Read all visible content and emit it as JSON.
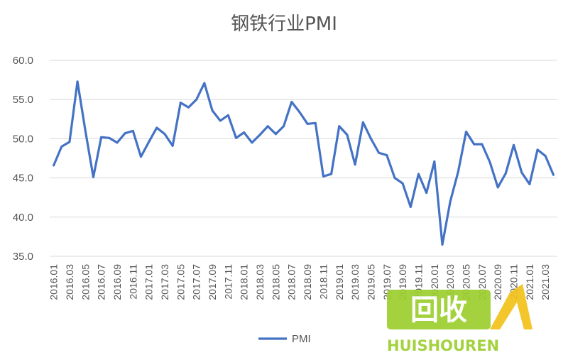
{
  "chart_data": {
    "type": "line",
    "title": "钢铁行业PMI",
    "xlabel": "",
    "ylabel": "",
    "ylim": [
      35,
      60
    ],
    "yticks": [
      "35.0",
      "40.0",
      "45.0",
      "50.0",
      "55.0",
      "60.0"
    ],
    "grid": "horizontal",
    "legend_position": "bottom-center",
    "tick_labels": [
      "2016.01",
      "2016.03",
      "2016.05",
      "2016.07",
      "2016.09",
      "2016.11",
      "2017.01",
      "2017.03",
      "2017.05",
      "2017.07",
      "2017.09",
      "2017.11",
      "2018.01",
      "2018.03",
      "2018.05",
      "2018.07",
      "2018.09",
      "2018.11",
      "2019.01",
      "2019.03",
      "2019.05",
      "2019.07",
      "2019.09",
      "2019.11",
      "2020.01",
      "2020.03",
      "2020.05",
      "2020.07",
      "2020.09",
      "2020.11",
      "2021.01",
      "2021.03"
    ],
    "categories": [
      "2016.01",
      "2016.02",
      "2016.03",
      "2016.04",
      "2016.05",
      "2016.06",
      "2016.07",
      "2016.08",
      "2016.09",
      "2016.10",
      "2016.11",
      "2016.12",
      "2017.01",
      "2017.02",
      "2017.03",
      "2017.04",
      "2017.05",
      "2017.06",
      "2017.07",
      "2017.08",
      "2017.09",
      "2017.10",
      "2017.11",
      "2017.12",
      "2018.01",
      "2018.02",
      "2018.03",
      "2018.04",
      "2018.05",
      "2018.06",
      "2018.07",
      "2018.08",
      "2018.09",
      "2018.10",
      "2018.11",
      "2018.12",
      "2019.01",
      "2019.02",
      "2019.03",
      "2019.04",
      "2019.05",
      "2019.06",
      "2019.07",
      "2019.08",
      "2019.09",
      "2019.10",
      "2019.11",
      "2019.12",
      "2020.01",
      "2020.02",
      "2020.03",
      "2020.04",
      "2020.05",
      "2020.06",
      "2020.07",
      "2020.08",
      "2020.09",
      "2020.10",
      "2020.11",
      "2020.12",
      "2021.01",
      "2021.02",
      "2021.03",
      "2021.04"
    ],
    "series": [
      {
        "name": "PMI",
        "color": "#4472C4",
        "values": [
          46.6,
          49.0,
          49.6,
          57.3,
          51.0,
          45.1,
          50.2,
          50.1,
          49.5,
          50.7,
          51.0,
          47.7,
          49.6,
          51.4,
          50.6,
          49.1,
          54.6,
          54.0,
          55.0,
          57.1,
          53.6,
          52.3,
          53.0,
          50.1,
          50.8,
          49.5,
          50.5,
          51.6,
          50.6,
          51.6,
          54.7,
          53.4,
          51.9,
          52.0,
          45.2,
          45.5,
          51.6,
          50.5,
          46.7,
          52.1,
          50.0,
          48.2,
          47.9,
          45.0,
          44.3,
          41.3,
          45.5,
          43.1,
          47.1,
          36.5,
          42.0,
          45.8,
          50.9,
          49.3,
          49.3,
          47.0,
          43.8,
          45.6,
          49.2,
          45.7,
          44.2,
          48.6,
          47.8,
          45.4
        ]
      }
    ]
  },
  "watermark": {
    "logo_text": "回收",
    "brand_text": "HUISHOUREN",
    "colors": [
      "#9ccf2e",
      "#f2c21b"
    ]
  }
}
